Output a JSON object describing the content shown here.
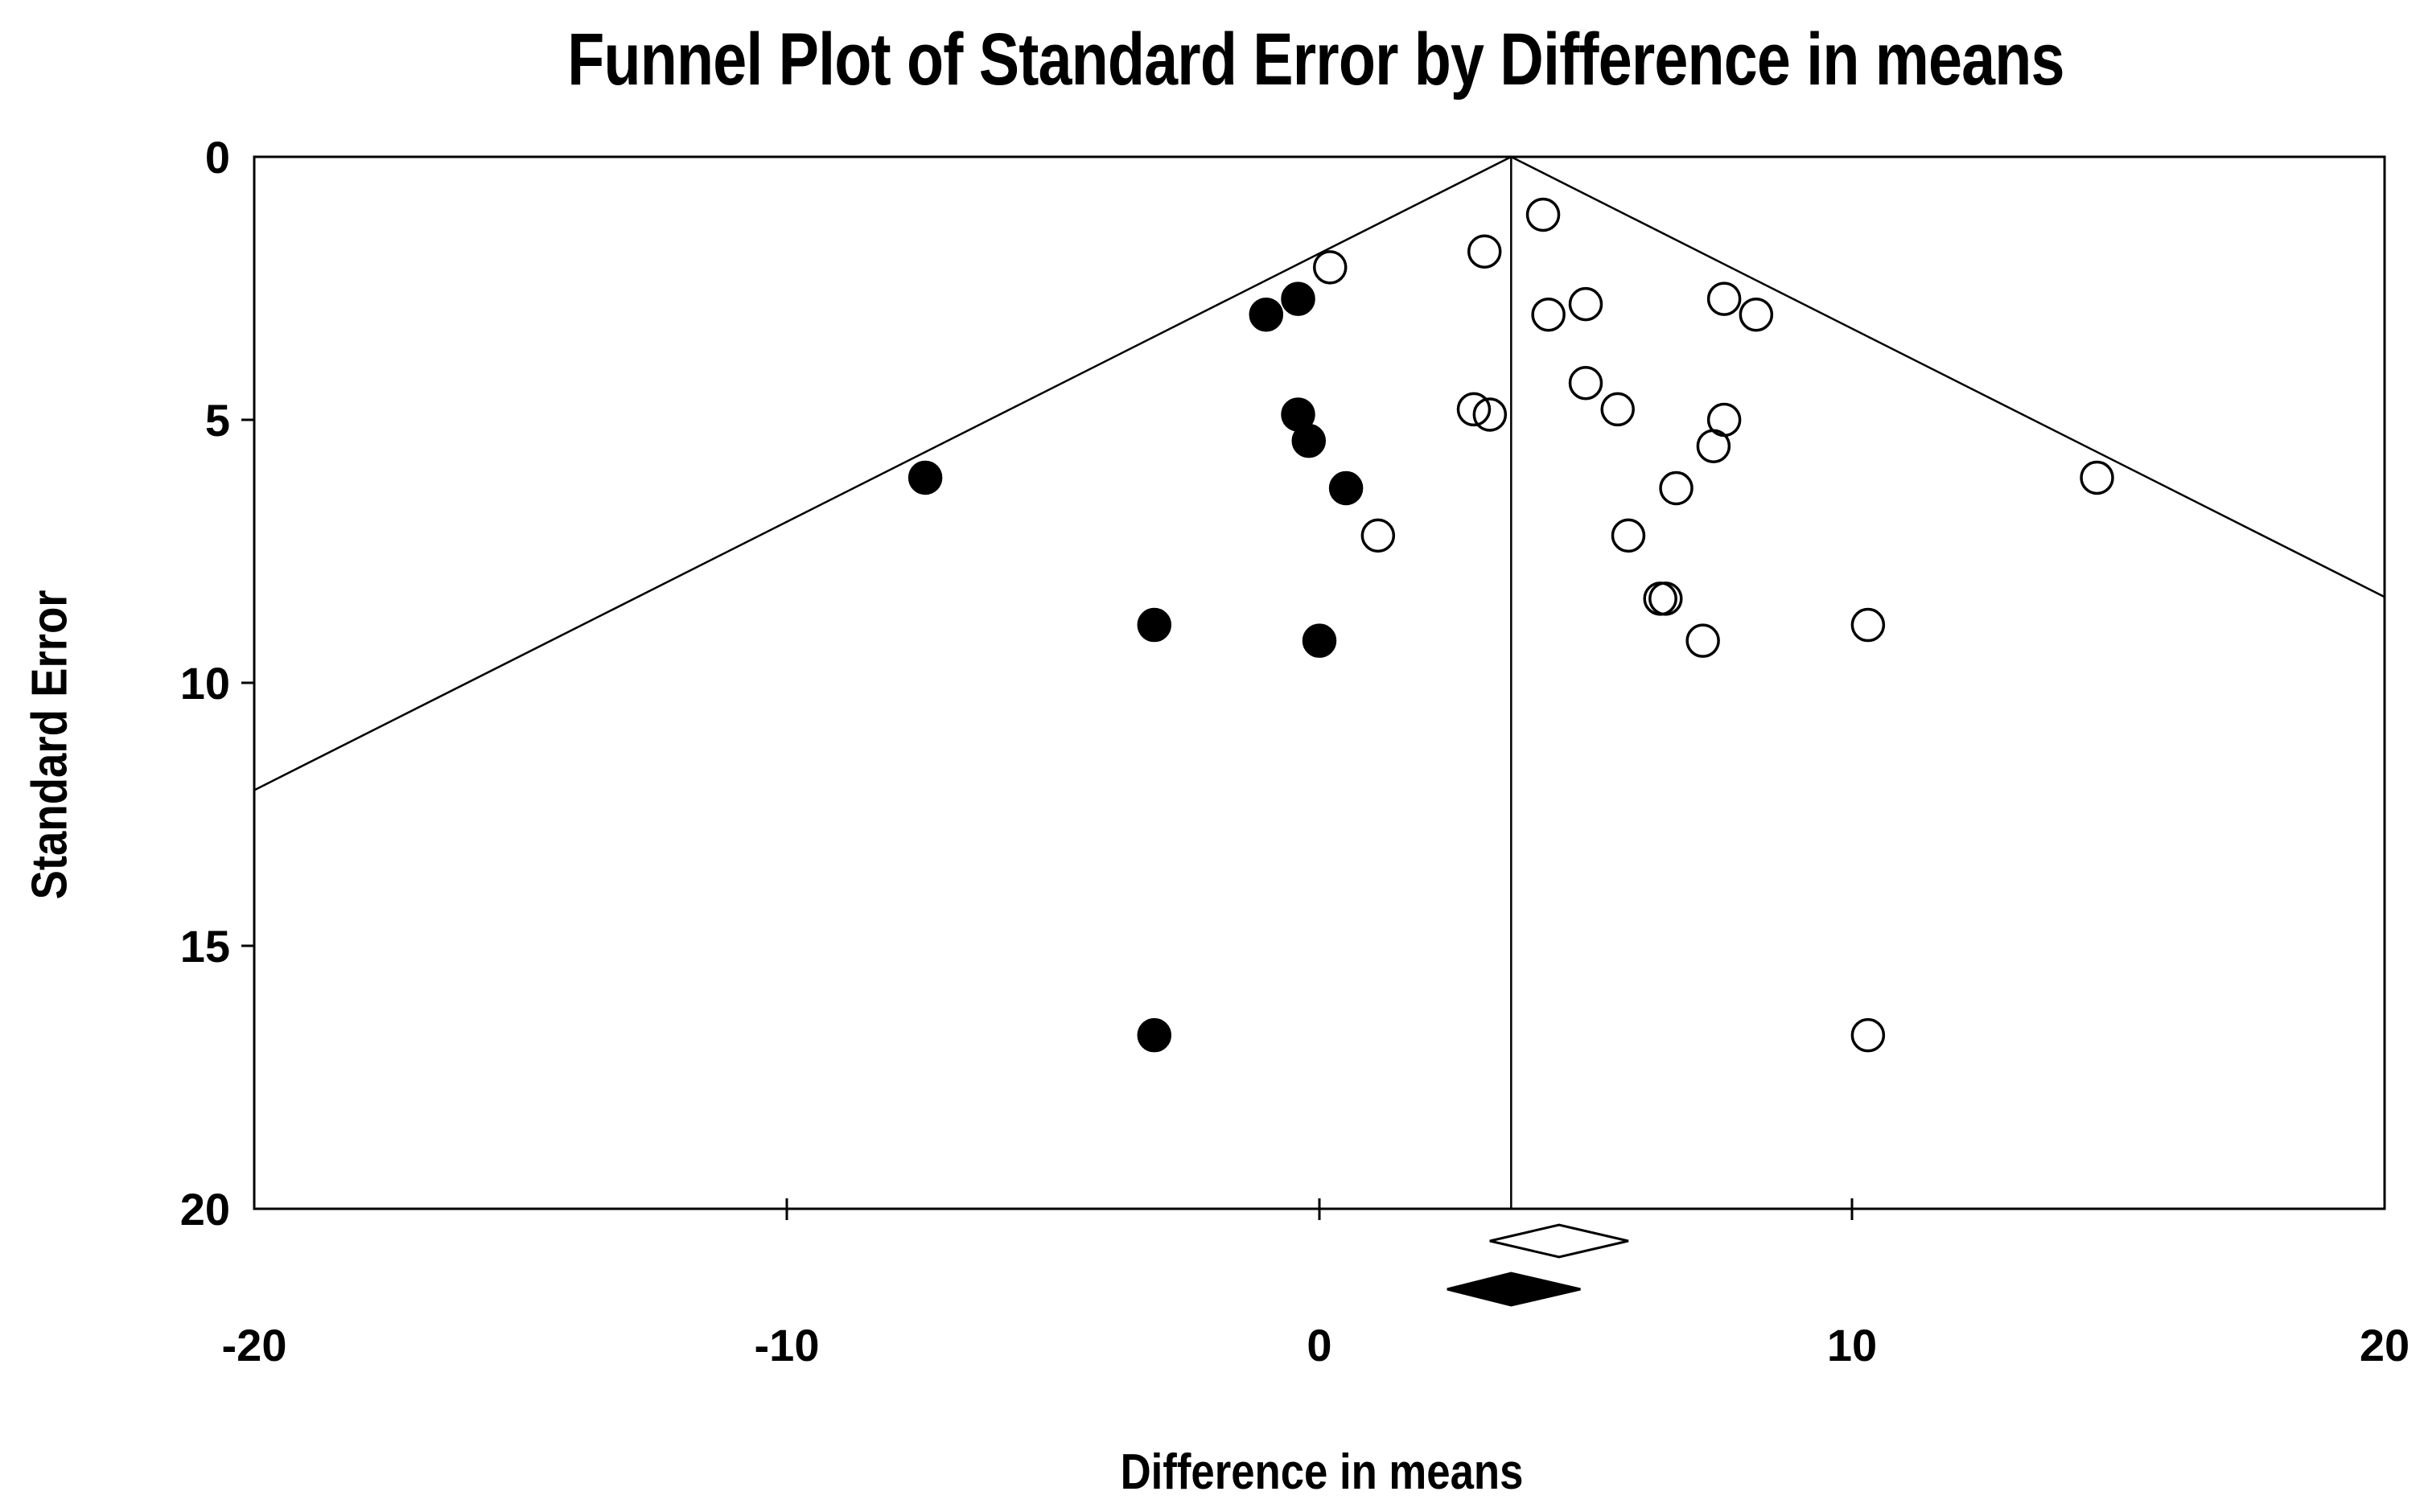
{
  "title": "Funnel Plot of Standard Error by Difference in means",
  "x_axis": {
    "label": "Difference in means",
    "tick_labels": [
      "-20",
      "-10",
      "0",
      "10",
      "20"
    ],
    "ticks": [
      -20,
      -10,
      0,
      10,
      20
    ],
    "range": [
      -20,
      20
    ]
  },
  "y_axis": {
    "label": "Standard Error",
    "tick_labels": [
      "0",
      "5",
      "10",
      "15",
      "20"
    ],
    "ticks": [
      0,
      5,
      10,
      15,
      20
    ],
    "range": [
      0,
      20
    ]
  },
  "colors": {
    "foreground": "#000000",
    "background": "#ffffff"
  },
  "chart_data": {
    "type": "scatter",
    "title": "Funnel Plot of Standard Error by Difference in means",
    "xlabel": "Difference in means",
    "ylabel": "Standard Error",
    "xlim": [
      -20,
      20
    ],
    "ylim": [
      0,
      20
    ],
    "y_inverted": true,
    "grid": false,
    "funnel": {
      "center": 3.6,
      "se_multiplier": 1.96,
      "vertical_line_at": 3.6
    },
    "series": [
      {
        "name": "observed-studies",
        "marker": "open-circle",
        "points": [
          [
            4.2,
            1.1
          ],
          [
            3.1,
            1.8
          ],
          [
            0.2,
            2.1
          ],
          [
            5.0,
            2.8
          ],
          [
            4.3,
            3.0
          ],
          [
            7.6,
            2.7
          ],
          [
            8.2,
            3.0
          ],
          [
            5.0,
            4.3
          ],
          [
            2.9,
            4.8
          ],
          [
            3.2,
            4.9
          ],
          [
            5.6,
            4.8
          ],
          [
            7.6,
            5.0
          ],
          [
            7.4,
            5.5
          ],
          [
            6.7,
            6.3
          ],
          [
            14.6,
            6.1
          ],
          [
            1.1,
            7.2
          ],
          [
            5.8,
            7.2
          ],
          [
            6.4,
            8.4
          ],
          [
            6.5,
            8.4
          ],
          [
            7.2,
            9.2
          ],
          [
            10.3,
            8.9
          ],
          [
            10.3,
            16.7
          ]
        ]
      },
      {
        "name": "imputed-studies",
        "marker": "filled-circle",
        "points": [
          [
            -0.4,
            2.7
          ],
          [
            -1.0,
            3.0
          ],
          [
            -0.4,
            4.9
          ],
          [
            -0.2,
            5.4
          ],
          [
            0.5,
            6.3
          ],
          [
            -7.4,
            6.1
          ],
          [
            -3.1,
            8.9
          ],
          [
            0.0,
            9.2
          ],
          [
            -3.1,
            16.7
          ]
        ]
      }
    ],
    "diamonds": [
      {
        "name": "observed-combined-effect",
        "fill": "open",
        "low": 3.2,
        "center": 4.5,
        "high": 5.8
      },
      {
        "name": "adjusted-combined-effect",
        "fill": "filled",
        "low": 2.4,
        "center": 3.6,
        "high": 4.9
      }
    ]
  }
}
